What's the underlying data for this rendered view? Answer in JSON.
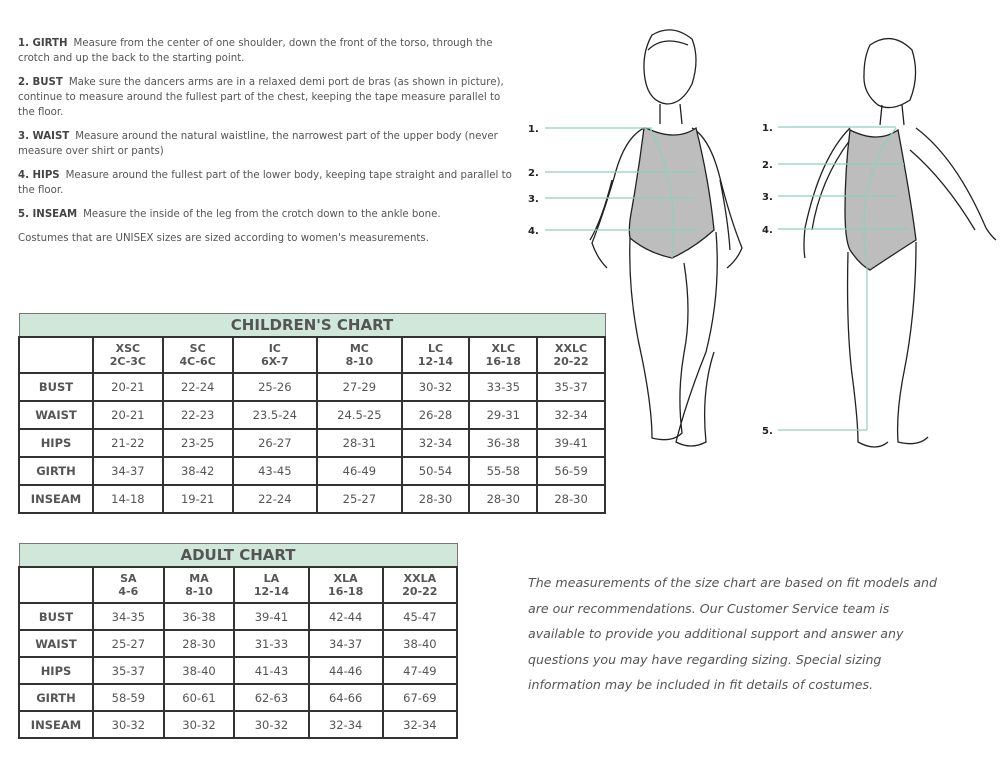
{
  "instructions": [
    {
      "label": "1. GIRTH",
      "text": "Measure from the center of one shoulder, down the front of the torso, through the crotch and up the back to the starting point."
    },
    {
      "label": "2. BUST",
      "text": "Make sure the dancers arms are in a relaxed demi port de bras (as shown in picture), continue to measure around the fullest part of the chest, keeping the tape measure parallel to the floor."
    },
    {
      "label": "3. WAIST",
      "text": "Measure around the natural waistline, the narrowest part of the upper body (never measure over shirt or pants)"
    },
    {
      "label": "4. HIPS",
      "text": "Measure around the fullest part of the lower body, keeping tape straight and parallel to the floor."
    },
    {
      "label": "5. INSEAM",
      "text": "Measure the inside of the leg from the crotch down to the ankle bone."
    }
  ],
  "unisex_note": "Costumes that are UNISEX sizes are sized according to women's measurements.",
  "children_chart": {
    "title": "CHILDREN'S CHART",
    "columns": [
      [
        "XSC",
        "2C-3C"
      ],
      [
        "SC",
        "4C-6C"
      ],
      [
        "IC",
        "6X-7"
      ],
      [
        "MC",
        "8-10"
      ],
      [
        "LC",
        "12-14"
      ],
      [
        "XLC",
        "16-18"
      ],
      [
        "XXLC",
        "20-22"
      ]
    ],
    "rows": [
      {
        "label": "BUST",
        "values": [
          "20-21",
          "22-24",
          "25-26",
          "27-29",
          "30-32",
          "33-35",
          "35-37"
        ]
      },
      {
        "label": "WAIST",
        "values": [
          "20-21",
          "22-23",
          "23.5-24",
          "24.5-25",
          "26-28",
          "29-31",
          "32-34"
        ]
      },
      {
        "label": "HIPS",
        "values": [
          "21-22",
          "23-25",
          "26-27",
          "28-31",
          "32-34",
          "36-38",
          "39-41"
        ]
      },
      {
        "label": "GIRTH",
        "values": [
          "34-37",
          "38-42",
          "43-45",
          "46-49",
          "50-54",
          "55-58",
          "56-59"
        ]
      },
      {
        "label": "INSEAM",
        "values": [
          "14-18",
          "19-21",
          "22-24",
          "25-27",
          "28-30",
          "28-30",
          "28-30"
        ]
      }
    ]
  },
  "adult_chart": {
    "title": "ADULT CHART",
    "columns": [
      [
        "SA",
        "4-6"
      ],
      [
        "MA",
        "8-10"
      ],
      [
        "LA",
        "12-14"
      ],
      [
        "XLA",
        "16-18"
      ],
      [
        "XXLA",
        "20-22"
      ]
    ],
    "rows": [
      {
        "label": "BUST",
        "values": [
          "34-35",
          "36-38",
          "39-41",
          "42-44",
          "45-47"
        ]
      },
      {
        "label": "WAIST",
        "values": [
          "25-27",
          "28-30",
          "31-33",
          "34-37",
          "38-40"
        ]
      },
      {
        "label": "HIPS",
        "values": [
          "35-37",
          "38-40",
          "41-43",
          "44-46",
          "47-49"
        ]
      },
      {
        "label": "GIRTH",
        "values": [
          "58-59",
          "60-61",
          "62-63",
          "64-66",
          "67-69"
        ]
      },
      {
        "label": "INSEAM",
        "values": [
          "30-32",
          "30-32",
          "30-32",
          "32-34",
          "32-34"
        ]
      }
    ]
  },
  "figure_labels": {
    "front": [
      "1.",
      "2.",
      "3.",
      "4."
    ],
    "back": [
      "1.",
      "2.",
      "3.",
      "4.",
      "5."
    ]
  },
  "fit_note": "The measurements of the size chart are based on fit models and are our recommendations. Our Customer Service team is available to provide you additional support and answer any questions you may have regarding sizing. Special sizing information may be included in fit details of costumes.",
  "colors": {
    "header_fill": "#cfe8da",
    "measure_line": "#8fd0b8",
    "leotard": "#bdbdbd"
  }
}
